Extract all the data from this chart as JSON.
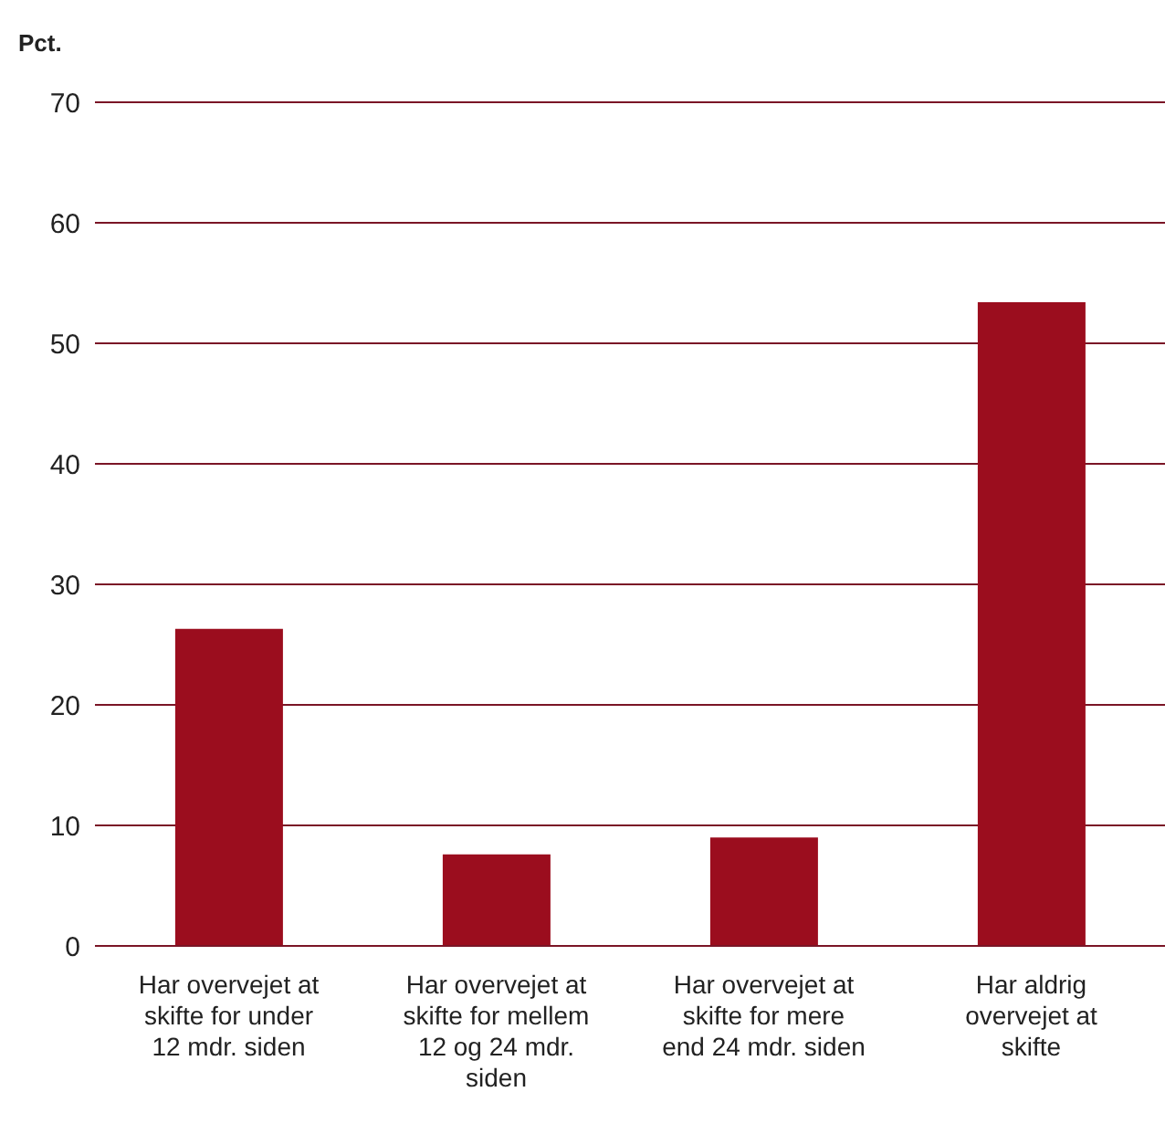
{
  "chart_data": {
    "type": "bar",
    "ylabel": "Pct.",
    "categories": [
      "Har overvejet at skifte for under 12 mdr. siden",
      "Har overvejet at skifte for mellem 12 og 24 mdr. siden",
      "Har overvejet at skifte for mere end 24 mdr. siden",
      "Har aldrig overvejet at skifte"
    ],
    "values": [
      26.3,
      7.6,
      9.0,
      53.4
    ],
    "color": "#9b0d1e",
    "ylim": [
      0,
      70
    ],
    "yticks": [
      0,
      10,
      20,
      30,
      40,
      50,
      60,
      70
    ],
    "grid": "y"
  }
}
